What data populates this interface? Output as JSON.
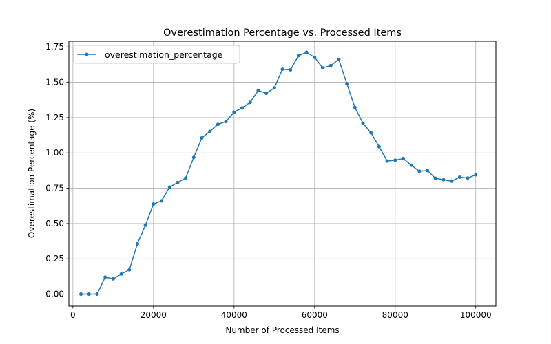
{
  "chart_data": {
    "type": "line",
    "title": "Overestimation Percentage vs. Processed Items",
    "xlabel": "Number of Processed Items",
    "ylabel": "Overestimation Percentage (%)",
    "xlim": [
      -1000,
      105000
    ],
    "ylim": [
      -0.085,
      1.79
    ],
    "xticks": [
      0,
      20000,
      40000,
      60000,
      80000,
      100000
    ],
    "xtick_labels": [
      "0",
      "20000",
      "40000",
      "60000",
      "80000",
      "100000"
    ],
    "yticks": [
      0,
      0.25,
      0.5,
      0.75,
      1.0,
      1.25,
      1.5,
      1.75
    ],
    "ytick_labels": [
      "0.00",
      "0.25",
      "0.50",
      "0.75",
      "1.00",
      "1.25",
      "1.50",
      "1.75"
    ],
    "grid": true,
    "legend_position": "top-left",
    "series": [
      {
        "name": "overestimation_percentage",
        "color": "#1f77b4",
        "marker": "circle",
        "x": [
          2000,
          4000,
          6000,
          8000,
          10000,
          12000,
          14000,
          16000,
          18000,
          20000,
          22000,
          24000,
          26000,
          28000,
          30000,
          32000,
          34000,
          36000,
          38000,
          40000,
          42000,
          44000,
          46000,
          48000,
          50000,
          52000,
          54000,
          56000,
          58000,
          60000,
          62000,
          64000,
          66000,
          68000,
          70000,
          72000,
          74000,
          76000,
          78000,
          80000,
          82000,
          84000,
          86000,
          88000,
          90000,
          92000,
          94000,
          96000,
          98000,
          100000
        ],
        "y": [
          0.0,
          0.0,
          0.0,
          0.12,
          0.108,
          0.142,
          0.172,
          0.356,
          0.488,
          0.638,
          0.66,
          0.758,
          0.79,
          0.822,
          0.968,
          1.106,
          1.152,
          1.202,
          1.222,
          1.288,
          1.318,
          1.358,
          1.442,
          1.422,
          1.46,
          1.592,
          1.588,
          1.688,
          1.712,
          1.676,
          1.602,
          1.618,
          1.662,
          1.49,
          1.322,
          1.21,
          1.142,
          1.044,
          0.942,
          0.948,
          0.96,
          0.912,
          0.87,
          0.875,
          0.82,
          0.81,
          0.8,
          0.828,
          0.822,
          0.845
        ]
      }
    ]
  }
}
